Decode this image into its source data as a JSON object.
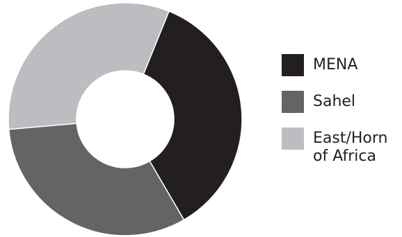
{
  "chart_data": {
    "type": "pie",
    "variant": "donut",
    "title": "",
    "legend_position": "right",
    "slices": [
      {
        "label": "MENA",
        "value": 35.5,
        "color": "#231f20"
      },
      {
        "label": "Sahel",
        "value": 32.0,
        "color": "#636466"
      },
      {
        "label": "East/Horn\nof Africa",
        "value": 32.5,
        "color": "#bcbdc0"
      }
    ]
  }
}
